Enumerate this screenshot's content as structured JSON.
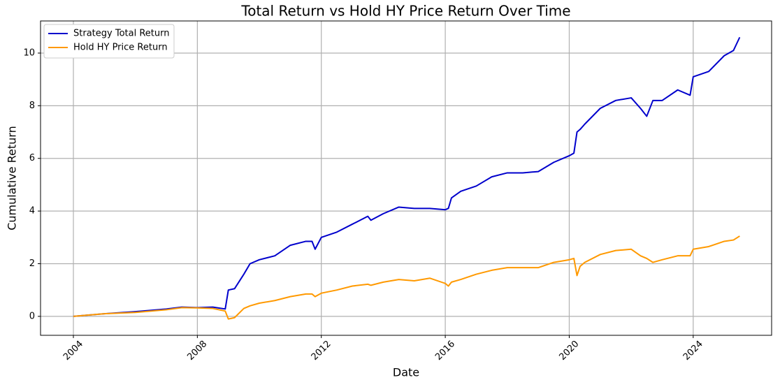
{
  "chart_data": {
    "type": "line",
    "title": "Total Return vs Hold HY Price Return Over Time",
    "x_label": "Date",
    "y_label": "Cumulative Return",
    "x": [
      2004,
      2005,
      2006,
      2007,
      2007.5,
      2008,
      2008.5,
      2008.9,
      2009,
      2009.2,
      2009.5,
      2009.7,
      2010,
      2010.5,
      2011,
      2011.5,
      2011.7,
      2011.8,
      2012,
      2012.5,
      2013,
      2013.5,
      2013.6,
      2014,
      2014.5,
      2015,
      2015.5,
      2016,
      2016.1,
      2016.2,
      2016.5,
      2017,
      2017.5,
      2018,
      2018.5,
      2019,
      2019.5,
      2020,
      2020.15,
      2020.25,
      2020.35,
      2020.5,
      2021,
      2021.5,
      2022,
      2022.3,
      2022.5,
      2022.7,
      2023,
      2023.5,
      2023.9,
      2024,
      2024.5,
      2025,
      2025.3,
      2025.5
    ],
    "series": [
      {
        "name": "Strategy Total Return",
        "color": "#0000cc",
        "values": [
          0,
          0.1,
          0.18,
          0.28,
          0.35,
          0.33,
          0.35,
          0.28,
          1.0,
          1.05,
          1.6,
          2.0,
          2.15,
          2.3,
          2.7,
          2.85,
          2.85,
          2.55,
          3.0,
          3.2,
          3.5,
          3.8,
          3.65,
          3.9,
          4.15,
          4.1,
          4.1,
          4.05,
          4.1,
          4.5,
          4.75,
          4.95,
          5.3,
          5.45,
          5.45,
          5.5,
          5.85,
          6.1,
          6.2,
          7.0,
          7.1,
          7.3,
          7.9,
          8.2,
          8.3,
          7.9,
          7.6,
          8.2,
          8.2,
          8.6,
          8.4,
          9.1,
          9.3,
          9.9,
          10.1,
          10.6
        ]
      },
      {
        "name": "Hold HY Price Return",
        "color": "#ff9900",
        "values": [
          0,
          0.1,
          0.15,
          0.25,
          0.33,
          0.32,
          0.3,
          0.2,
          -0.1,
          -0.05,
          0.3,
          0.4,
          0.5,
          0.6,
          0.75,
          0.85,
          0.85,
          0.75,
          0.88,
          1.0,
          1.15,
          1.22,
          1.18,
          1.3,
          1.4,
          1.35,
          1.45,
          1.25,
          1.15,
          1.3,
          1.4,
          1.6,
          1.75,
          1.85,
          1.85,
          1.85,
          2.05,
          2.15,
          2.2,
          1.55,
          1.9,
          2.05,
          2.35,
          2.5,
          2.55,
          2.3,
          2.2,
          2.05,
          2.15,
          2.3,
          2.3,
          2.55,
          2.65,
          2.85,
          2.9,
          3.05
        ]
      }
    ],
    "xlim": [
      2002.94,
      2026.53
    ],
    "xticks": [
      2004,
      2008,
      2012,
      2016,
      2020,
      2024
    ],
    "ylim": [
      -0.72,
      11.22
    ],
    "yticks": [
      0,
      2,
      4,
      6,
      8,
      10
    ],
    "grid": true,
    "legend": "upper-left"
  }
}
